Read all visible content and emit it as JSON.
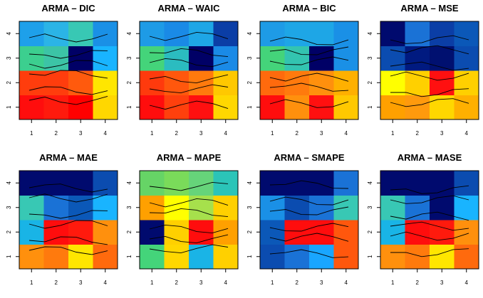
{
  "chart_data": [
    {
      "type": "heatmap",
      "title": "ARMA – DIC",
      "x": [
        1,
        2,
        3,
        4
      ],
      "y": [
        1,
        2,
        3,
        4
      ],
      "colors_bottom_to_top": [
        [
          "#ff0d0d",
          "#ff1a0d",
          "#ff0000",
          "#ffd700"
        ],
        [
          "#ff3d0d",
          "#ff3d0d",
          "#ff5a0d",
          "#ffe600"
        ],
        [
          "#3ccf8f",
          "#3cc4a6",
          "#000066",
          "#19b4ff"
        ],
        [
          "#1ea0ea",
          "#2bb4e6",
          "#38c8b4",
          "#1a90e6"
        ]
      ]
    },
    {
      "type": "heatmap",
      "title": "ARMA – WAIC",
      "x": [
        1,
        2,
        3,
        4
      ],
      "y": [
        1,
        2,
        3,
        4
      ],
      "colors_bottom_to_top": [
        [
          "#ff0d0d",
          "#ff400d",
          "#ff1010",
          "#ffd700"
        ],
        [
          "#ff3a0d",
          "#ff570d",
          "#ff7a0d",
          "#ffc800"
        ],
        [
          "#44d47a",
          "#2bbcc0",
          "#000066",
          "#1a8ae6"
        ],
        [
          "#1e9be6",
          "#1a8ae6",
          "#1ea6e6",
          "#0b3ea6"
        ]
      ]
    },
    {
      "type": "heatmap",
      "title": "ARMA – BIC",
      "x": [
        1,
        2,
        3,
        4
      ],
      "y": [
        1,
        2,
        3,
        4
      ],
      "colors_bottom_to_top": [
        [
          "#ff0d0d",
          "#ff900d",
          "#ff1010",
          "#ffc800"
        ],
        [
          "#ff6a0d",
          "#ff7a0d",
          "#ff900d",
          "#ffb000"
        ],
        [
          "#44d47a",
          "#33c4b0",
          "#000066",
          "#1a90e6"
        ],
        [
          "#1e9be6",
          "#1ea6e6",
          "#1ea6e6",
          "#1a90e6"
        ]
      ]
    },
    {
      "type": "heatmap",
      "title": "ARMA – MSE",
      "x": [
        1,
        2,
        3,
        4
      ],
      "y": [
        1,
        2,
        3,
        4
      ],
      "colors_bottom_to_top": [
        [
          "#ffa000",
          "#ff9a0d",
          "#ffd700",
          "#ffb000"
        ],
        [
          "#ffff00",
          "#ffd000",
          "#ff1010",
          "#ffd000"
        ],
        [
          "#0b4cb0",
          "#001a80",
          "#001070",
          "#0b4cb0"
        ],
        [
          "#000a6e",
          "#1a72d6",
          "#0b3ea6",
          "#0b58b8"
        ]
      ]
    },
    {
      "type": "heatmap",
      "title": "ARMA – MAE",
      "x": [
        1,
        2,
        3,
        4
      ],
      "y": [
        1,
        2,
        3,
        4
      ],
      "colors_bottom_to_top": [
        [
          "#ff900d",
          "#ff7a0d",
          "#ffe600",
          "#ff6a0d"
        ],
        [
          "#19b4e6",
          "#ff0d0d",
          "#ff1a0d",
          "#ff900d"
        ],
        [
          "#38c8b4",
          "#1a72d6",
          "#0b58b8",
          "#19b4ff"
        ],
        [
          "#000a6e",
          "#000a6e",
          "#000a6e",
          "#0b4cb0"
        ]
      ]
    },
    {
      "type": "heatmap",
      "title": "ARMA – MAPE",
      "x": [
        1,
        2,
        3,
        4
      ],
      "y": [
        1,
        2,
        3,
        4
      ],
      "colors_bottom_to_top": [
        [
          "#44d47a",
          "#ffd700",
          "#1ab4e6",
          "#ffd000"
        ],
        [
          "#000a6e",
          "#ffd000",
          "#ff0d0d",
          "#ffa000"
        ],
        [
          "#ffa000",
          "#ffff00",
          "#a6e04c",
          "#ffd000"
        ],
        [
          "#66d466",
          "#7adb5a",
          "#66d47a",
          "#2bc4b8"
        ]
      ]
    },
    {
      "type": "heatmap",
      "title": "ARMA – SMAPE",
      "x": [
        1,
        2,
        3,
        4
      ],
      "y": [
        1,
        2,
        3,
        4
      ],
      "colors_bottom_to_top": [
        [
          "#0b4cb0",
          "#1a72d6",
          "#19a6ff",
          "#ff570d"
        ],
        [
          "#0b58b8",
          "#ff0d0d",
          "#ff0d0d",
          "#ff570d"
        ],
        [
          "#1a90e6",
          "#0b4cb0",
          "#1a72d6",
          "#38c8b4"
        ],
        [
          "#000a6e",
          "#000a6e",
          "#000a6e",
          "#1a72d6"
        ]
      ]
    },
    {
      "type": "heatmap",
      "title": "ARMA – MASE",
      "x": [
        1,
        2,
        3,
        4
      ],
      "y": [
        1,
        2,
        3,
        4
      ],
      "colors_bottom_to_top": [
        [
          "#ff900d",
          "#ff7a0d",
          "#ffe600",
          "#ff6a0d"
        ],
        [
          "#19b4e6",
          "#ff0d0d",
          "#ff1a0d",
          "#ff900d"
        ],
        [
          "#38c8b4",
          "#1a72d6",
          "#000a6e",
          "#19b4ff"
        ],
        [
          "#000a6e",
          "#000a6e",
          "#000a6e",
          "#0b4cb0"
        ]
      ]
    }
  ]
}
